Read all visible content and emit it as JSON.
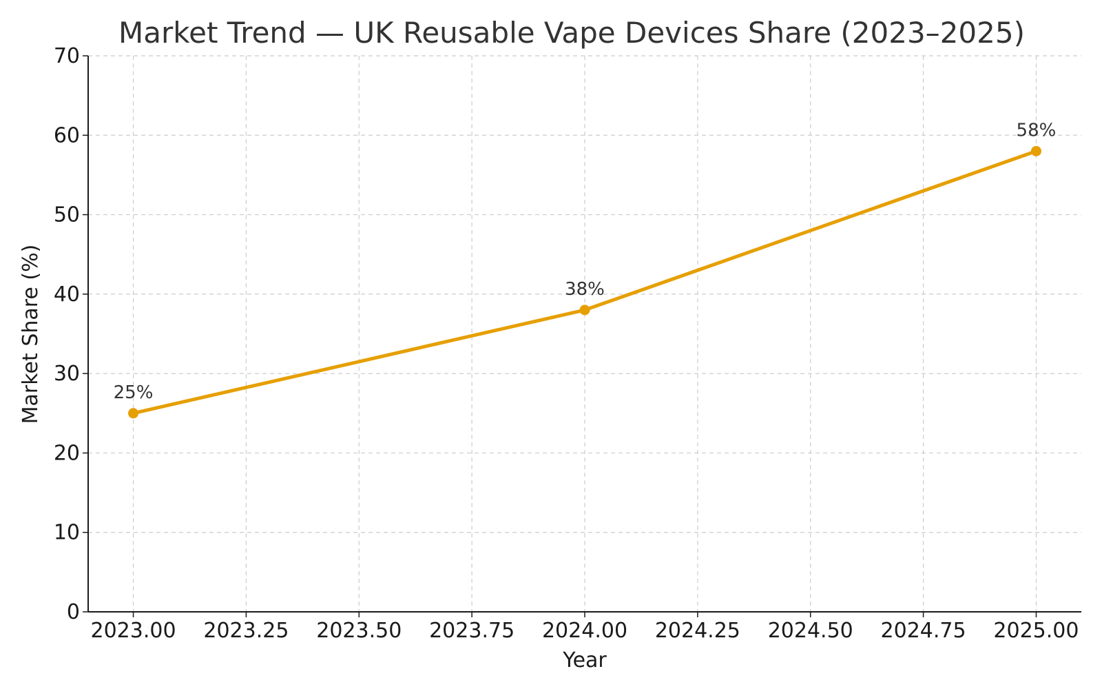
{
  "chart_data": {
    "type": "line",
    "title": "Market Trend — UK Reusable Vape Devices Share (2023–2025)",
    "xlabel": "Year",
    "ylabel": "Market Share (%)",
    "x": [
      2023,
      2024,
      2025
    ],
    "series": [
      {
        "values": [
          25,
          38,
          58
        ],
        "labels": [
          "25%",
          "38%",
          "58%"
        ],
        "color": "#E69F00"
      }
    ],
    "xlim": [
      2022.9,
      2025.1
    ],
    "ylim": [
      0,
      70
    ],
    "xticks": [
      2023.0,
      2023.25,
      2023.5,
      2023.75,
      2024.0,
      2024.25,
      2024.5,
      2024.75,
      2025.0
    ],
    "xtick_labels": [
      "2023.00",
      "2023.25",
      "2023.50",
      "2023.75",
      "2024.00",
      "2024.25",
      "2024.50",
      "2024.75",
      "2025.00"
    ],
    "yticks": [
      0,
      10,
      20,
      30,
      40,
      50,
      60,
      70
    ],
    "ytick_labels": [
      "0",
      "10",
      "20",
      "30",
      "40",
      "50",
      "60",
      "70"
    ],
    "grid": true,
    "legend": "none"
  }
}
